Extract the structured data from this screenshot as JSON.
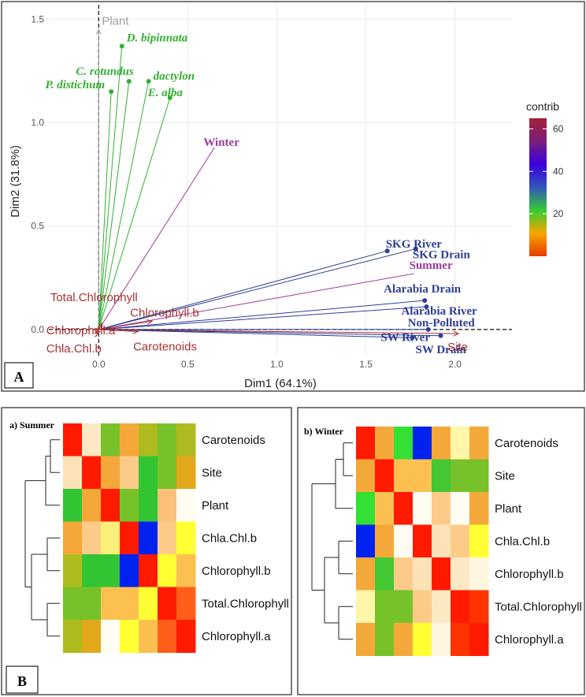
{
  "chart_data": [
    {
      "type": "scatter",
      "panel_label": "A",
      "xlabel": "Dim1 (64.1%)",
      "ylabel": "Dim2 (31.8%)",
      "xlim": [
        -0.28,
        2.32
      ],
      "ylim": [
        -0.13,
        1.57
      ],
      "x_ticks": [
        0.0,
        0.5,
        1.0,
        1.5,
        2.0
      ],
      "x_tick_labels": [
        "0.0",
        "0.5",
        "1.0",
        "1.5",
        "2.0"
      ],
      "y_ticks": [
        0.0,
        0.5,
        1.0,
        1.5
      ],
      "y_tick_labels": [
        "0.0",
        "0.5",
        "1.0",
        "1.5"
      ],
      "grid": true,
      "legend": {
        "title": "contrib",
        "placement": "right",
        "range": [
          0,
          65
        ],
        "ticks": [
          20,
          40,
          60
        ],
        "tick_labels": [
          "20",
          "40",
          "60"
        ],
        "colors": [
          "#e83a00",
          "#f7a600",
          "#33cc33",
          "#3355bb",
          "#3a00dd",
          "#7a1f7a",
          "#a6203a"
        ]
      },
      "variables": [
        {
          "label": "Plant",
          "x": 0.0,
          "y": 1.45,
          "color": "#a0a0a0",
          "group": "header"
        },
        {
          "label": "D. bipinnata",
          "x": 0.13,
          "y": 1.37,
          "color": "#33b033",
          "group": "plant"
        },
        {
          "label": "C. rotundus",
          "x": 0.17,
          "y": 1.2,
          "color": "#33b033",
          "group": "plant"
        },
        {
          "label": "dactylon",
          "x": 0.28,
          "y": 1.2,
          "color": "#33b033",
          "group": "plant"
        },
        {
          "label": "P. distichum",
          "x": 0.07,
          "y": 1.15,
          "color": "#33b033",
          "group": "plant"
        },
        {
          "label": "E. alba",
          "x": 0.4,
          "y": 1.12,
          "color": "#33b033",
          "group": "plant"
        },
        {
          "label": "Winter",
          "x": 0.65,
          "y": 0.88,
          "color": "#9b3a9b",
          "group": "season"
        },
        {
          "label": "SKG River",
          "x": 1.62,
          "y": 0.38,
          "color": "#2e3f96",
          "group": "site"
        },
        {
          "label": "SKG Drain",
          "x": 1.78,
          "y": 0.39,
          "color": "#2e3f96",
          "group": "site"
        },
        {
          "label": "Summer",
          "x": 1.77,
          "y": 0.27,
          "color": "#9b3a9b",
          "group": "season"
        },
        {
          "label": "Alarabia Drain",
          "x": 1.83,
          "y": 0.14,
          "color": "#2e3f96",
          "group": "site"
        },
        {
          "label": "Alarabia River",
          "x": 1.84,
          "y": 0.11,
          "color": "#2e3f96",
          "group": "site"
        },
        {
          "label": "Non-Polluted",
          "x": 1.85,
          "y": 0.0,
          "color": "#2e3f96",
          "group": "site"
        },
        {
          "label": "SW River",
          "x": 1.76,
          "y": -0.04,
          "color": "#2e3f96",
          "group": "site"
        },
        {
          "label": "SW Drain",
          "x": 1.92,
          "y": -0.03,
          "color": "#2e3f96",
          "group": "site"
        },
        {
          "label": "Total.Chlorophyll",
          "x": 0.02,
          "y": 0.03,
          "color": "#a83232",
          "group": "trait"
        },
        {
          "label": "Chlorophyll.b",
          "x": 0.3,
          "y": 0.04,
          "color": "#a83232",
          "group": "trait"
        },
        {
          "label": "Chlorophyll.a",
          "x": -0.02,
          "y": 0.0,
          "color": "#a83232",
          "group": "trait"
        },
        {
          "label": "Chla.Chl.b",
          "x": -0.02,
          "y": -0.02,
          "color": "#a83232",
          "group": "trait"
        },
        {
          "label": "Carotenoids",
          "x": 0.22,
          "y": -0.01,
          "color": "#a83232",
          "group": "trait"
        },
        {
          "label": "Site",
          "x": 2.02,
          "y": -0.02,
          "color": "#a83232",
          "group": "trait"
        }
      ]
    },
    {
      "type": "heatmap",
      "panel_label": "B",
      "title": "a) Summer",
      "rows": [
        "Carotenoids",
        "Site",
        "Plant",
        "Chla.Chl.b",
        "Chlorophyll.b",
        "Total.Chlorophyll",
        "Chlorophyll.a"
      ],
      "cells": [
        [
          "#ff1a00",
          "#fde8c4",
          "#77c22a",
          "#f5a83a",
          "#aebb1e",
          "#77c22a",
          "#aebb1e"
        ],
        [
          "#fde2b8",
          "#ff1a00",
          "#f5a83a",
          "#fccb88",
          "#33c433",
          "#77c22a",
          "#e0a81a"
        ],
        [
          "#33c433",
          "#f5a83a",
          "#ff1a00",
          "#77c22a",
          "#33c433",
          "#fbc07a",
          "#fffdf2"
        ],
        [
          "#f5a83a",
          "#fccb88",
          "#fbf07a",
          "#ff1a00",
          "#0022ee",
          "#fccb88",
          "#ffff33"
        ],
        [
          "#aebb1e",
          "#33c433",
          "#33c433",
          "#0022ee",
          "#ff1a00",
          "#ffff33",
          "#fcc050"
        ],
        [
          "#77c22a",
          "#77c22a",
          "#fcc050",
          "#fcc050",
          "#ffff33",
          "#ff1a00",
          "#ff5e1a"
        ],
        [
          "#aebb1e",
          "#e0a81a",
          "#fffdf2",
          "#ffff33",
          "#fcc050",
          "#ff5e1a",
          "#ff1a00"
        ]
      ]
    },
    {
      "type": "heatmap",
      "title": "b) Winter",
      "rows": [
        "Carotenoids",
        "Site",
        "Plant",
        "Chla.Chl.b",
        "Chlorophyll.b",
        "Total.Chlorophyll",
        "Chlorophyll.a"
      ],
      "cells": [
        [
          "#ff1a00",
          "#f5a83a",
          "#33e033",
          "#0022ee",
          "#f5a83a",
          "#fff6a8",
          "#f5a83a"
        ],
        [
          "#f5a83a",
          "#ff1a00",
          "#fcc050",
          "#fcc050",
          "#45c633",
          "#77c22a",
          "#77c22a"
        ],
        [
          "#33e033",
          "#fcc050",
          "#ff1a00",
          "#fffdf2",
          "#fccb88",
          "#fffdf2",
          "#f5a83a"
        ],
        [
          "#0022ee",
          "#f5a83a",
          "#fffdf2",
          "#ff1a00",
          "#fde2b8",
          "#fccb88",
          "#ffff33"
        ],
        [
          "#f5a83a",
          "#45c633",
          "#fccb88",
          "#fde2b8",
          "#ff1a00",
          "#fde8c4",
          "#fff6e0"
        ],
        [
          "#fff6a8",
          "#77c22a",
          "#77c22a",
          "#fccb88",
          "#fde8c4",
          "#ff1a00",
          "#ff3300"
        ],
        [
          "#f5a83a",
          "#77c22a",
          "#f5a83a",
          "#ffff33",
          "#fff6e0",
          "#ff3300",
          "#ff1a00"
        ]
      ]
    }
  ]
}
